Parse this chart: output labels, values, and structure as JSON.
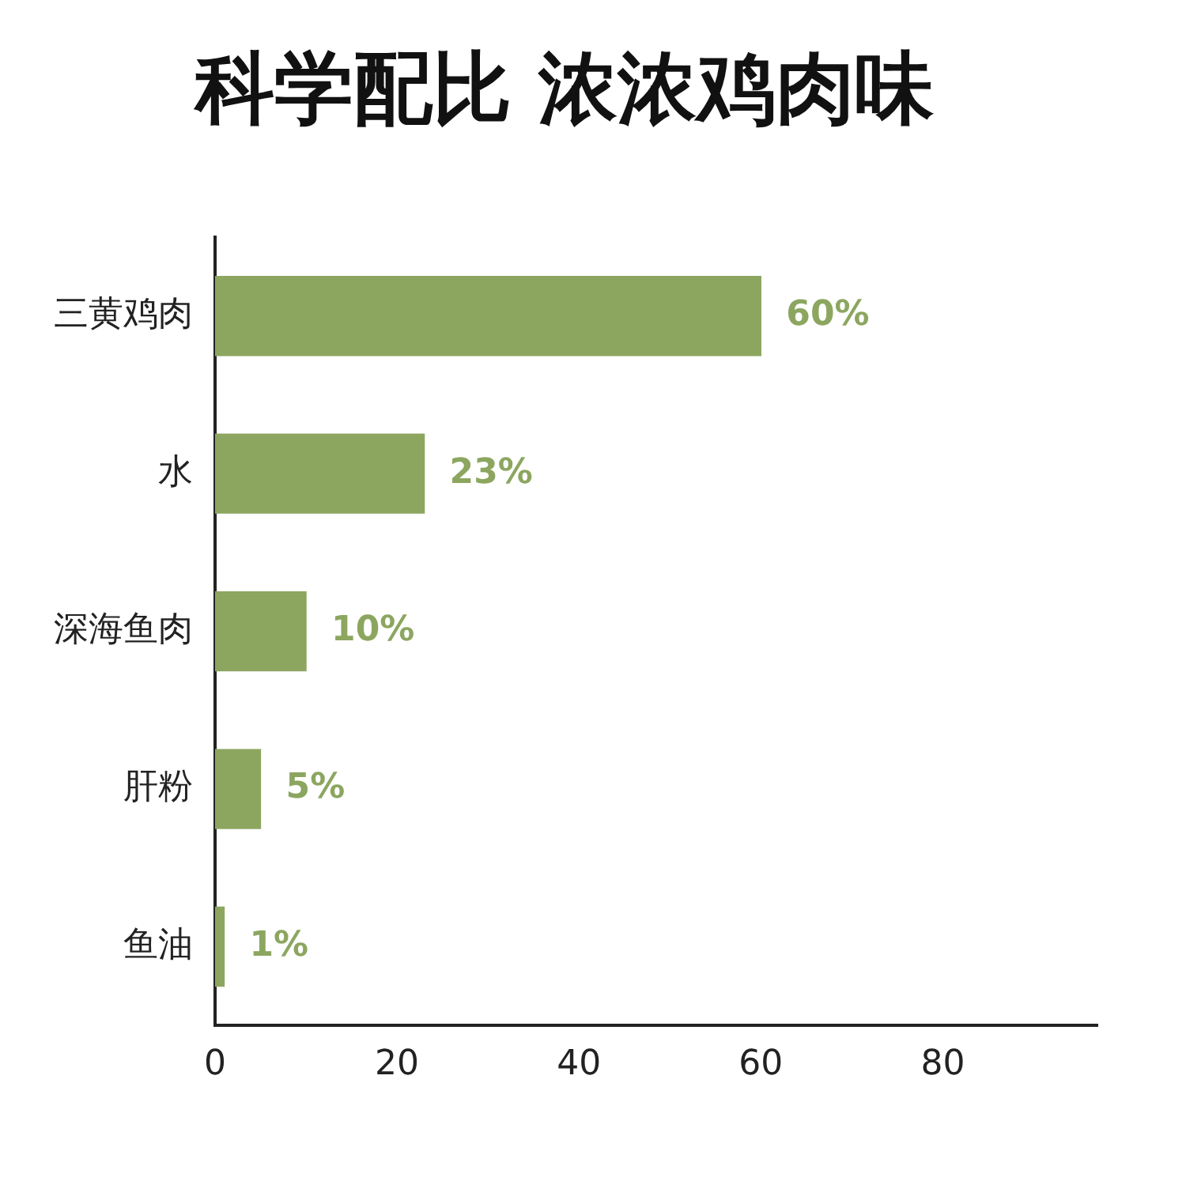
{
  "chart_data": {
    "type": "bar",
    "orientation": "horizontal",
    "title": "科学配比 浓浓鸡肉味",
    "categories": [
      "三黄鸡肉",
      "水",
      "深海鱼肉",
      "肝粉",
      "鱼油"
    ],
    "values": [
      60,
      23,
      10,
      5,
      1
    ],
    "value_labels": [
      "60%",
      "23%",
      "10%",
      "5%",
      "1%"
    ],
    "color": "#8ca660",
    "xlim": [
      0,
      97
    ],
    "xticks": [
      0,
      20,
      40,
      60,
      80
    ],
    "grid": false,
    "legend": false
  }
}
